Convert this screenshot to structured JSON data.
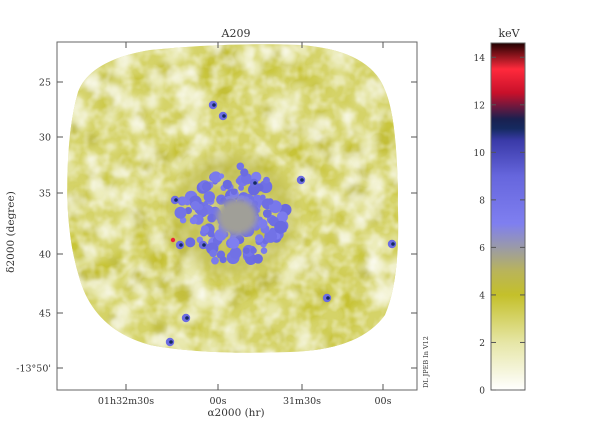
{
  "chart_data": {
    "type": "heatmap",
    "title": "A209",
    "xlabel": "α2000 (hr)",
    "ylabel": "δ2000 (degree)",
    "x_ticks": [
      {
        "label": "01h32m30s"
      },
      {
        "label": "00s"
      },
      {
        "label": "31m30s"
      },
      {
        "label": "00s"
      }
    ],
    "y_ticks": [
      {
        "label": "25"
      },
      {
        "label": "30"
      },
      {
        "label": "35"
      },
      {
        "label": "40"
      },
      {
        "label": "45"
      },
      {
        "label": "-13°50'"
      }
    ],
    "colorbar": {
      "label": "keV",
      "min": 0,
      "max": 14.6,
      "ticks": [
        0,
        2,
        4,
        6,
        8,
        10,
        12,
        14
      ],
      "stops": [
        {
          "value": 0,
          "color": "#ffffff"
        },
        {
          "value": 2,
          "color": "#e6e6a6"
        },
        {
          "value": 4,
          "color": "#c4c02a"
        },
        {
          "value": 5,
          "color": "#b9b45a"
        },
        {
          "value": 6,
          "color": "#9a9aa8"
        },
        {
          "value": 7,
          "color": "#7f7ff0"
        },
        {
          "value": 9,
          "color": "#6666dd"
        },
        {
          "value": 10.5,
          "color": "#3a3aa8"
        },
        {
          "value": 11,
          "color": "#152a60"
        },
        {
          "value": 11.4,
          "color": "#1a2050"
        },
        {
          "value": 12.5,
          "color": "#c8102a"
        },
        {
          "value": 13.5,
          "color": "#ff2a3c"
        },
        {
          "value": 14.6,
          "color": "#200000"
        }
      ]
    },
    "map": {
      "background_level_keV": 3.0,
      "core_level_keV": 7.5,
      "hotspot_level_keV": 11
    },
    "credit": "DL JPEB In V12"
  }
}
